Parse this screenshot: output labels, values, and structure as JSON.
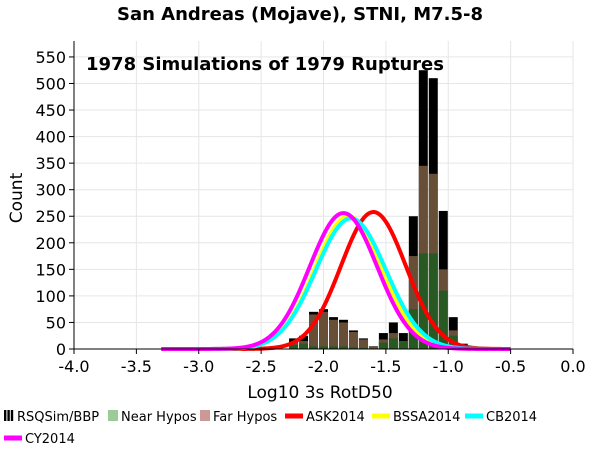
{
  "chart_data": {
    "type": "bar",
    "title": "San Andreas (Mojave), STNI, M7.5-8",
    "annotation": "1978 Simulations of 1979 Ruptures",
    "xlabel": "Log10 3s RotD50",
    "ylabel": "Count",
    "xlim": [
      -4.0,
      0.0
    ],
    "ylim": [
      0,
      580
    ],
    "x_ticks": [
      -4.0,
      -3.5,
      -3.0,
      -2.5,
      -2.0,
      -1.5,
      -1.0,
      -0.5,
      0.0
    ],
    "x_tick_labels": [
      "-4.0",
      "-3.5",
      "-3.0",
      "-2.5",
      "-2.0",
      "-1.5",
      "-1.0",
      "-0.5",
      "0.0"
    ],
    "y_ticks": [
      0,
      50,
      100,
      150,
      200,
      250,
      300,
      350,
      400,
      450,
      500,
      550
    ],
    "y_tick_labels": [
      "0",
      "50",
      "100",
      "150",
      "200",
      "250",
      "300",
      "350",
      "400",
      "450",
      "500",
      "550"
    ],
    "grid": true,
    "legend_placement": "bottom",
    "legend": [
      {
        "label": "RSQSim/BBP",
        "color": "#000000",
        "kind": "box"
      },
      {
        "label": "Near Hypos",
        "color": "#99cc99",
        "kind": "box"
      },
      {
        "label": "Far Hypos",
        "color": "#cc9999",
        "kind": "box"
      },
      {
        "label": "ASK2014",
        "color": "#ff0000",
        "kind": "line"
      },
      {
        "label": "BSSA2014",
        "color": "#ffff00",
        "kind": "line"
      },
      {
        "label": "CB2014",
        "color": "#00ffff",
        "kind": "line"
      },
      {
        "label": "CY2014",
        "color": "#ff00ff",
        "kind": "line"
      }
    ],
    "bin_width": 0.08,
    "histogram": {
      "bin_centers": [
        -2.24,
        -2.16,
        -2.08,
        -2.0,
        -1.92,
        -1.84,
        -1.76,
        -1.68,
        -1.6,
        -1.52,
        -1.44,
        -1.36,
        -1.28,
        -1.2,
        -1.12,
        -1.04,
        -0.96,
        -0.88
      ],
      "total": [
        20,
        25,
        70,
        75,
        60,
        55,
        35,
        20,
        5,
        30,
        50,
        30,
        250,
        525,
        510,
        260,
        60,
        10
      ],
      "near": [
        8,
        10,
        5,
        5,
        5,
        5,
        3,
        2,
        1,
        12,
        20,
        15,
        75,
        180,
        180,
        110,
        25,
        4
      ],
      "far": [
        12,
        15,
        65,
        70,
        55,
        50,
        32,
        18,
        4,
        18,
        30,
        15,
        175,
        345,
        330,
        150,
        35,
        6
      ]
    },
    "series": [
      {
        "name": "ASK2014",
        "color": "#ff0000",
        "mean": -1.6,
        "sigma": 0.26,
        "peak": 258,
        "x_range": [
          -3.3,
          -0.5
        ]
      },
      {
        "name": "BSSA2014",
        "color": "#ffff00",
        "mean": -1.8,
        "sigma": 0.27,
        "peak": 250,
        "x_range": [
          -3.3,
          -0.5
        ]
      },
      {
        "name": "CB2014",
        "color": "#00ffff",
        "mean": -1.78,
        "sigma": 0.28,
        "peak": 246,
        "x_range": [
          -3.3,
          -0.5
        ]
      },
      {
        "name": "CY2014",
        "color": "#ff00ff",
        "mean": -1.84,
        "sigma": 0.27,
        "peak": 256,
        "x_range": [
          -3.3,
          -0.5
        ]
      }
    ],
    "colors": {
      "near_fill": "#1f5a1f",
      "far_fill": "#8a6a4a",
      "total_fill": "#000000",
      "grid": "#e6e6e6",
      "axis": "#000000"
    }
  }
}
